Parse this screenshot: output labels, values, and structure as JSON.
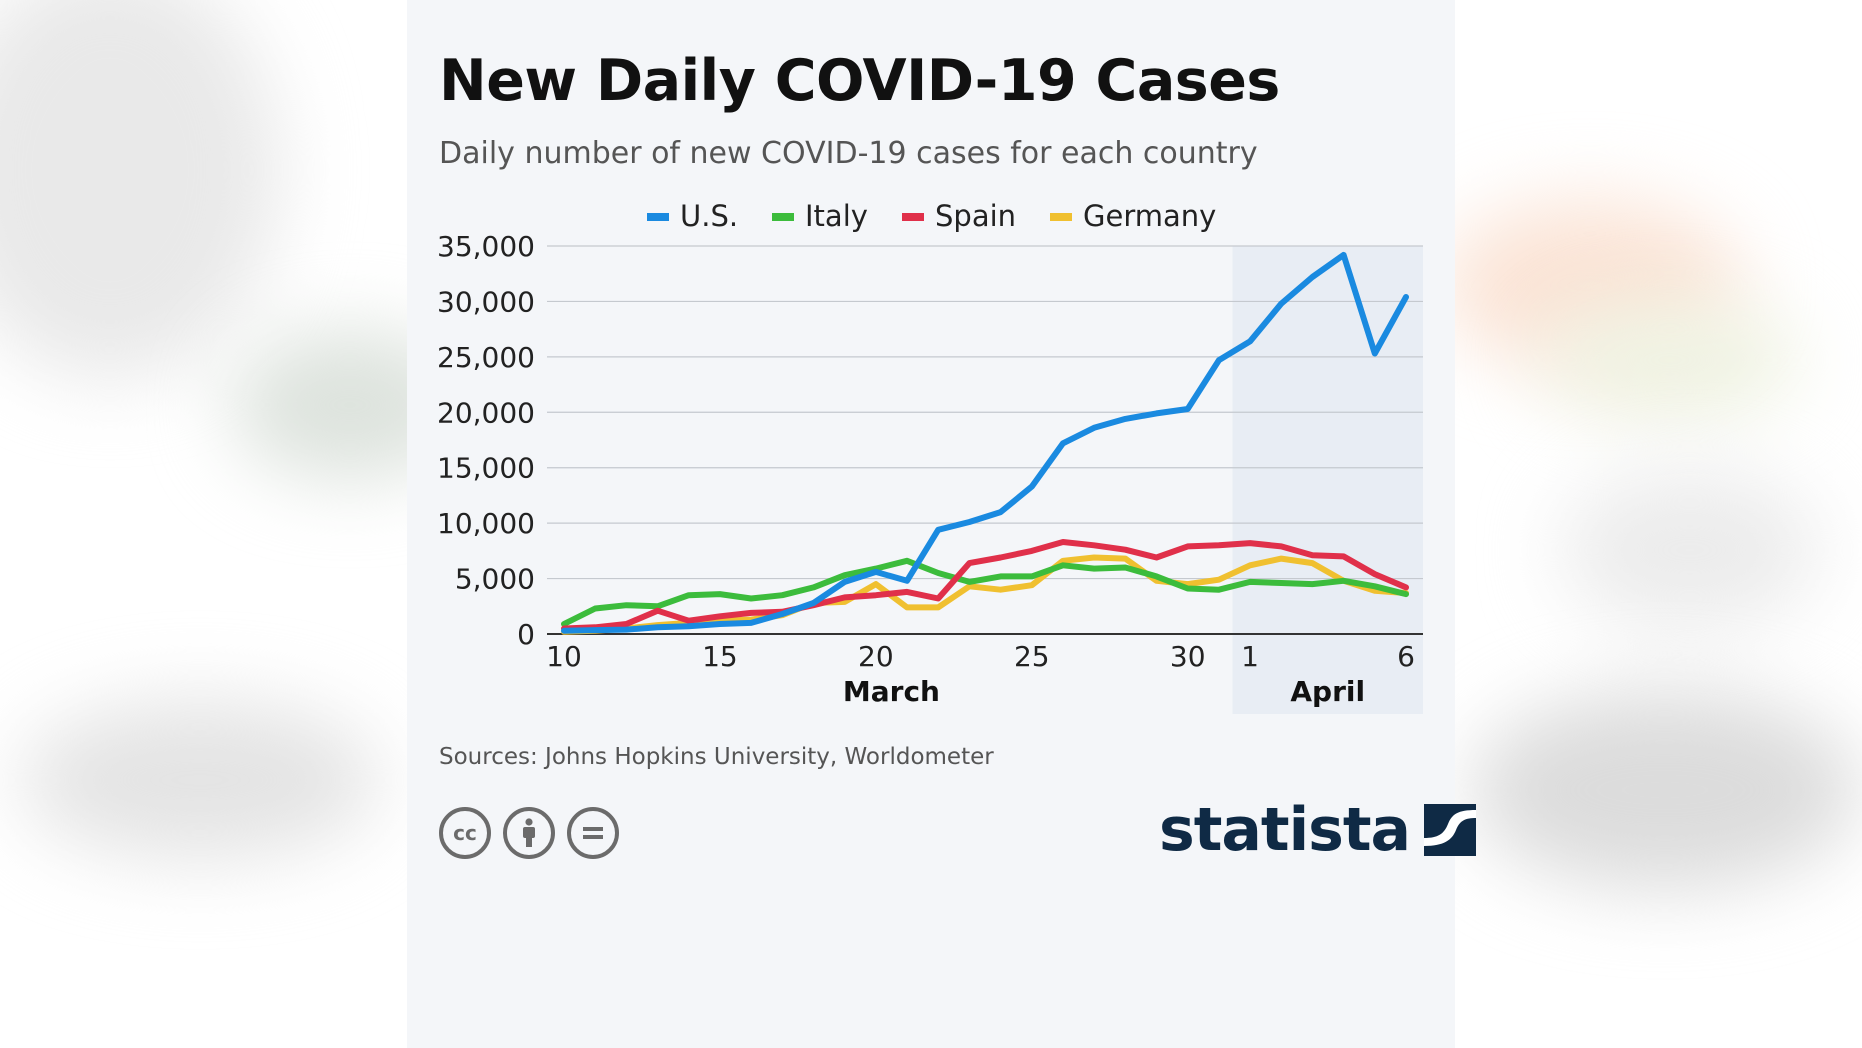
{
  "header": {
    "title": "New Daily COVID-19 Cases",
    "subtitle": "Daily number of new COVID-19 cases for each country"
  },
  "footer": {
    "source": "Sources: Johns Hopkins University, Worldometer",
    "license_icons": [
      "cc-icon",
      "by-icon",
      "nd-icon"
    ],
    "logo_text": "statista"
  },
  "chart_data": {
    "type": "line",
    "x": [
      "Mar 10",
      "Mar 11",
      "Mar 12",
      "Mar 13",
      "Mar 14",
      "Mar 15",
      "Mar 16",
      "Mar 17",
      "Mar 18",
      "Mar 19",
      "Mar 20",
      "Mar 21",
      "Mar 22",
      "Mar 23",
      "Mar 24",
      "Mar 25",
      "Mar 26",
      "Mar 27",
      "Mar 28",
      "Mar 29",
      "Mar 30",
      "Mar 31",
      "Apr 1",
      "Apr 2",
      "Apr 3",
      "Apr 4",
      "Apr 5",
      "Apr 6"
    ],
    "x_tick_labels": [
      "10",
      "15",
      "20",
      "25",
      "30",
      "1",
      "6"
    ],
    "x_group_labels": [
      "March",
      "April"
    ],
    "ylim": [
      0,
      35000
    ],
    "y_ticks": [
      0,
      5000,
      10000,
      15000,
      20000,
      25000,
      30000,
      35000
    ],
    "y_tick_labels": [
      "0",
      "5,000",
      "10,000",
      "15,000",
      "20,000",
      "25,000",
      "30,000",
      "35,000"
    ],
    "grid": true,
    "legend_position": "top",
    "highlight_region": "Apr 1 – Apr 6",
    "series": [
      {
        "name": "U.S.",
        "color": "#1a8ae0",
        "values": [
          300,
          350,
          400,
          600,
          700,
          900,
          1000,
          1800,
          2800,
          4700,
          5600,
          4800,
          9400,
          10100,
          11000,
          13300,
          17200,
          18600,
          19400,
          19900,
          20300,
          24700,
          26400,
          29800,
          32200,
          34200,
          25300,
          30400
        ]
      },
      {
        "name": "Italy",
        "color": "#3cbc3c",
        "values": [
          900,
          2300,
          2600,
          2500,
          3500,
          3600,
          3200,
          3500,
          4200,
          5300,
          5900,
          6600,
          5500,
          4700,
          5200,
          5200,
          6200,
          5900,
          6000,
          5200,
          4100,
          4000,
          4700,
          4600,
          4500,
          4800,
          4300,
          3600
        ]
      },
      {
        "name": "Spain",
        "color": "#e0304a",
        "values": [
          500,
          600,
          900,
          2100,
          1200,
          1600,
          1900,
          2000,
          2600,
          3300,
          3500,
          3800,
          3200,
          6400,
          6900,
          7500,
          8300,
          8000,
          7600,
          6900,
          7900,
          8000,
          8200,
          7900,
          7100,
          7000,
          5400,
          4200
        ]
      },
      {
        "name": "Germany",
        "color": "#f0c030",
        "values": [
          200,
          300,
          500,
          800,
          1000,
          1200,
          1300,
          1700,
          2800,
          2900,
          4500,
          2400,
          2400,
          4300,
          4000,
          4400,
          6600,
          6900,
          6800,
          4800,
          4500,
          4900,
          6200,
          6800,
          6400,
          4800,
          3900,
          3700
        ]
      }
    ]
  }
}
